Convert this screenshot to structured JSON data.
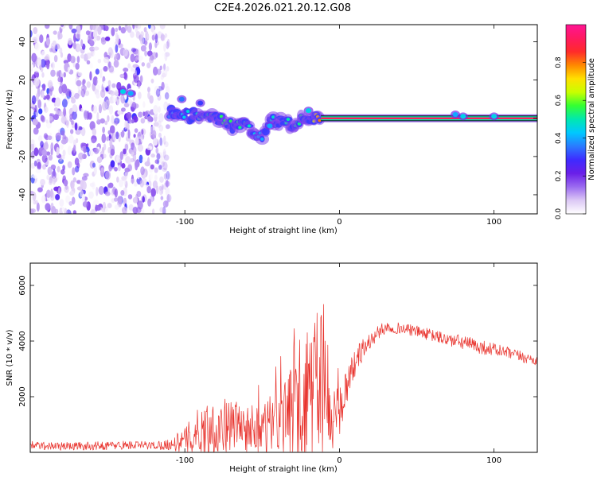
{
  "title": "C2E4.2026.021.20.12.G08",
  "colors": {
    "snr_line": "#e8302a",
    "colorbar": [
      "#ffffff",
      "#dcc8f5",
      "#9b6bf0",
      "#6a1fe8",
      "#3e2bff",
      "#2a7bff",
      "#00c8ff",
      "#00e8b0",
      "#33ff33",
      "#c8ff00",
      "#ffe000",
      "#ff8800",
      "#ff2a2a",
      "#ff1a60",
      "#ff1493"
    ]
  },
  "chart_data": [
    {
      "type": "heatmap",
      "title": "C2E4.2026.021.20.12.G08",
      "xlabel": "Height of straight line (km)",
      "ylabel": "Frequency (Hz)",
      "xlim": [
        -200,
        128
      ],
      "ylim": [
        -50,
        49
      ],
      "x_ticks": [
        -100,
        0,
        100
      ],
      "x_tick_labels": [
        "-100",
        "0",
        "100"
      ],
      "y_ticks": [
        -40,
        -20,
        0,
        20,
        40
      ],
      "y_tick_labels": [
        "-40",
        "-20",
        "0",
        "20",
        "40"
      ],
      "colorbar": {
        "label": "Normalized spectral amplitude",
        "range": [
          0,
          1
        ],
        "ticks": [
          0,
          0.2,
          0.4,
          0.6,
          0.8
        ],
        "tick_labels": [
          "0.0",
          "0.2",
          "0.4",
          "0.6",
          "0.8"
        ]
      },
      "noise_region": {
        "x_from": -200,
        "x_to": -110,
        "f_from": -50,
        "f_to": 49,
        "amplitude": 0.2
      },
      "signal_track": {
        "x": [
          -110,
          -100,
          -90,
          -80,
          -70,
          -60,
          -50,
          -45,
          -40,
          -30,
          -20,
          -10,
          0,
          10,
          50,
          100,
          128
        ],
        "freq": [
          3,
          2,
          1,
          0,
          -3,
          -5,
          -9,
          1,
          -2,
          -3,
          1,
          0,
          0,
          0,
          0,
          0,
          0
        ],
        "amplitude": [
          0.4,
          0.45,
          0.5,
          0.55,
          0.55,
          0.5,
          0.4,
          0.45,
          0.5,
          0.5,
          0.55,
          0.9,
          0.95,
          0.95,
          0.95,
          0.95,
          0.95
        ]
      },
      "secondary_blobs": [
        {
          "x": -140,
          "freq": 14,
          "amplitude": 0.45
        },
        {
          "x": -135,
          "freq": 13,
          "amplitude": 0.4
        },
        {
          "x": -102,
          "freq": 10,
          "amplitude": 0.35
        },
        {
          "x": -90,
          "freq": 8,
          "amplitude": 0.3
        },
        {
          "x": -20,
          "freq": 4,
          "amplitude": 0.45
        },
        {
          "x": -45,
          "freq": -4,
          "amplitude": 0.4
        },
        {
          "x": 75,
          "freq": 2,
          "amplitude": 0.4
        },
        {
          "x": 80,
          "freq": 1,
          "amplitude": 0.45
        },
        {
          "x": 100,
          "freq": 1,
          "amplitude": 0.45
        }
      ]
    },
    {
      "type": "line",
      "xlabel": "Height of straight line (km)",
      "ylabel": "SNR (10 * v/v)",
      "xlim": [
        -200,
        128
      ],
      "ylim": [
        0,
        6800
      ],
      "x_ticks": [
        -100,
        0,
        100
      ],
      "x_tick_labels": [
        "-100",
        "0",
        "100"
      ],
      "y_ticks": [
        2000,
        4000,
        6000
      ],
      "y_tick_labels": [
        "2000",
        "4000",
        "6000"
      ],
      "series": [
        {
          "name": "SNR",
          "x": [
            -200,
            -180,
            -160,
            -140,
            -120,
            -110,
            -100,
            -90,
            -80,
            -70,
            -60,
            -50,
            -40,
            -30,
            -25,
            -20,
            -15,
            -12,
            -10,
            -8,
            -5,
            -3,
            0,
            5,
            10,
            15,
            20,
            25,
            30,
            40,
            50,
            60,
            70,
            80,
            90,
            100,
            110,
            120,
            128
          ],
          "y": [
            250,
            220,
            230,
            260,
            250,
            280,
            400,
            800,
            900,
            1000,
            900,
            850,
            1100,
            1400,
            1600,
            2000,
            2200,
            2000,
            1800,
            1300,
            800,
            900,
            1500,
            2500,
            3200,
            3700,
            4000,
            4300,
            4500,
            4450,
            4350,
            4200,
            4050,
            3950,
            3800,
            3700,
            3550,
            3400,
            3300
          ],
          "noise": [
            150,
            150,
            150,
            160,
            150,
            200,
            500,
            900,
            1100,
            900,
            900,
            900,
            1200,
            1700,
            2200,
            2800,
            3400,
            3200,
            2500,
            1500,
            900,
            900,
            900,
            700,
            500,
            400,
            300,
            250,
            220,
            200,
            200,
            220,
            250,
            260,
            260,
            240,
            220,
            200,
            200
          ]
        }
      ]
    }
  ]
}
